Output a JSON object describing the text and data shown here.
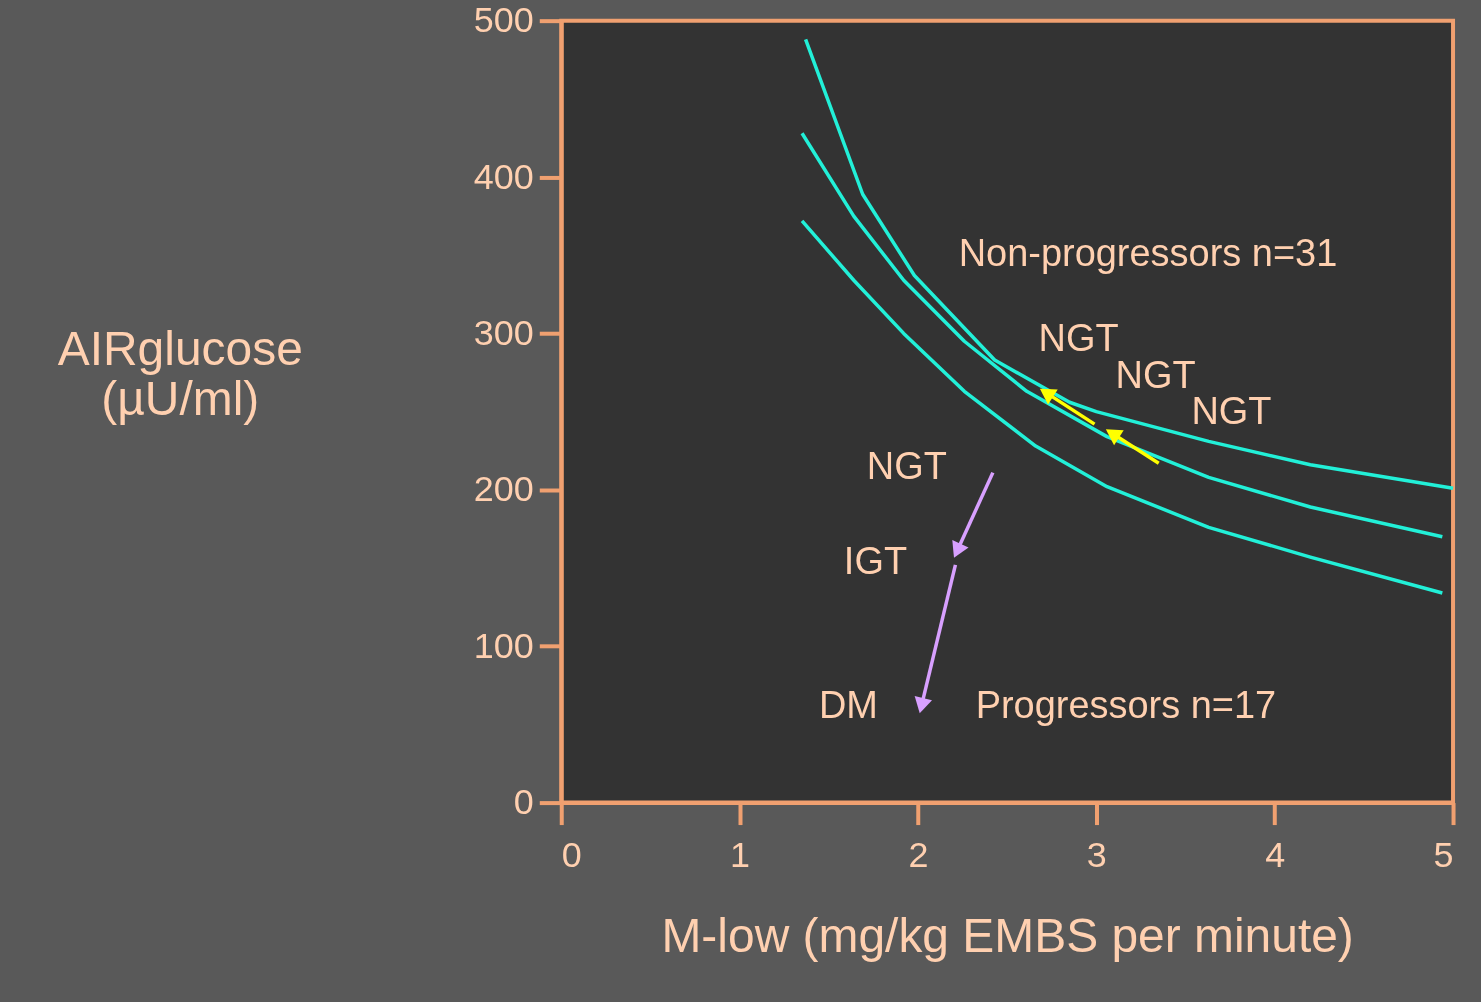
{
  "chart_data": {
    "type": "line",
    "xlabel": "M-low (mg/kg EMBS per minute)",
    "ylabel": "AIRglucose\n(µU/ml)",
    "xlim": [
      0,
      5
    ],
    "ylim": [
      0,
      500
    ],
    "xticks": [
      0,
      1,
      2,
      3,
      4,
      5
    ],
    "yticks": [
      0,
      100,
      200,
      300,
      400,
      500
    ],
    "grid": false,
    "marker": "none",
    "line_style": "solid",
    "series": [
      {
        "color": "#22f0d8",
        "x": [
          1.37,
          1.69,
          1.98,
          2.43,
          2.85,
          3.0,
          3.63,
          4.2,
          5.0
        ],
        "values": [
          488,
          389,
          337,
          283,
          256,
          250,
          231,
          216,
          201
        ]
      },
      {
        "color": "#22f0d8",
        "x": [
          1.35,
          1.64,
          1.92,
          2.26,
          2.61,
          3.06,
          3.63,
          4.2,
          4.94
        ],
        "values": [
          428,
          375,
          334,
          295,
          263,
          234,
          208,
          189,
          170
        ]
      },
      {
        "color": "#22f0d8",
        "x": [
          1.35,
          1.64,
          1.92,
          2.26,
          2.66,
          3.06,
          3.63,
          4.2,
          4.94
        ],
        "values": [
          372,
          334,
          300,
          263,
          228,
          202,
          176,
          157,
          134
        ]
      },
      {
        "color": "#ffff00",
        "marker": "triangle",
        "x": [
          2.99,
          2.72
        ],
        "values": [
          242,
          262
        ]
      },
      {
        "color": "#ffff00",
        "marker": "triangle",
        "x": [
          3.35,
          3.09
        ],
        "values": [
          217,
          236
        ]
      },
      {
        "color": "#d8a0ff",
        "marker": "triangle",
        "x": [
          2.42,
          2.22
        ],
        "values": [
          211,
          161
        ]
      },
      {
        "color": "#d8a0ff",
        "marker": "triangle",
        "x": [
          2.21,
          2.02
        ],
        "values": [
          152,
          62
        ]
      }
    ],
    "annotations": [
      "Non-progressors n=31",
      "NGT",
      "NGT",
      "NGT",
      "NGT",
      "IGT",
      "DM",
      "Progressors n=17"
    ]
  }
}
